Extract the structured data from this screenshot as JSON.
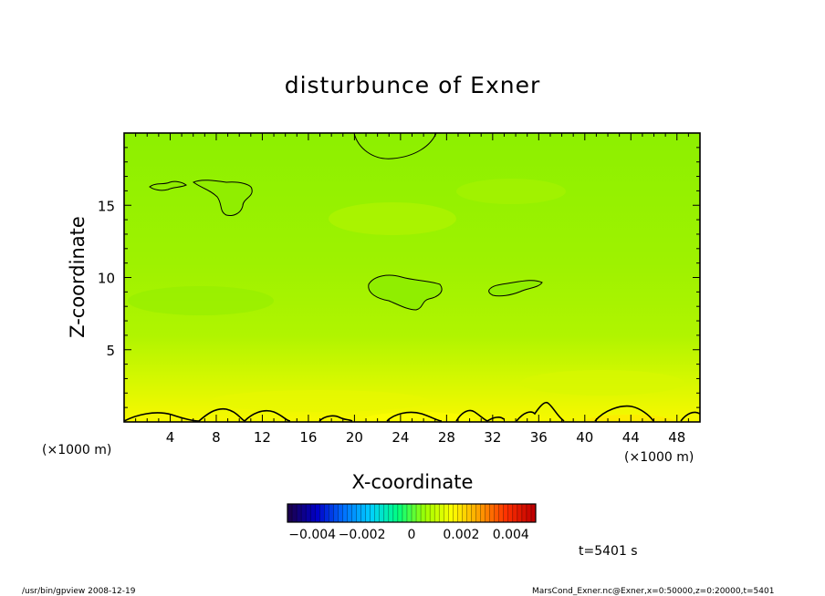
{
  "chart_data": {
    "type": "heatmap",
    "title": "disturbunce of Exner",
    "xlabel": "X-coordinate",
    "ylabel": "Z-coordinate",
    "x_unit_left": "(×1000 m)",
    "x_unit_right": "(×1000 m)",
    "xlim": [
      0,
      50
    ],
    "ylim": [
      0,
      20
    ],
    "xticks": [
      4,
      8,
      12,
      16,
      20,
      24,
      28,
      32,
      36,
      40,
      44,
      48
    ],
    "yticks": [
      5,
      10,
      15
    ],
    "colorbar": {
      "range": [
        -0.005,
        0.005
      ],
      "tick_labels": [
        {
          "value": -0.004,
          "label": "−0.004"
        },
        {
          "value": -0.002,
          "label": "−0.002"
        },
        {
          "value": 0,
          "label": "0"
        },
        {
          "value": 0.002,
          "label": "0.002"
        },
        {
          "value": 0.004,
          "label": "0.004"
        }
      ],
      "colors": [
        "#1a0050",
        "#0000c8",
        "#0070ff",
        "#00d0ff",
        "#00ff80",
        "#a0ff00",
        "#ffff00",
        "#ffa000",
        "#ff3000",
        "#c00000"
      ]
    },
    "time_label": "t=5401 s",
    "grid": false
  },
  "footer": {
    "left": "/usr/bin/gpview   2008-12-19",
    "right": "MarsCond_Exner.nc@Exner,x=0:50000,z=0:20000,t=5401"
  }
}
